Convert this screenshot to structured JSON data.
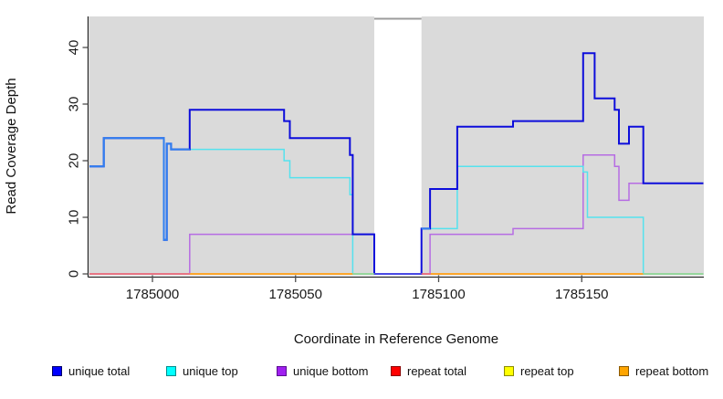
{
  "axes": {
    "xlabel": "Coordinate in Reference Genome",
    "ylabel": "Read Coverage Depth",
    "x_ticks": [
      1785000,
      1785050,
      1785100,
      1785150
    ],
    "y_ticks": [
      0,
      10,
      20,
      30,
      40
    ]
  },
  "legend": {
    "items": [
      {
        "label": "unique total",
        "swatch_color": "#0000FF",
        "swatch_border": "#000066"
      },
      {
        "label": "unique top",
        "swatch_color": "#00FFFF",
        "swatch_border": "#008B8B"
      },
      {
        "label": "unique bottom",
        "swatch_color": "#A020F0",
        "swatch_border": "#5A0E91"
      },
      {
        "label": "repeat total",
        "swatch_color": "#FF0000",
        "swatch_border": "#8B0000"
      },
      {
        "label": "repeat top",
        "swatch_color": "#FFFF00",
        "swatch_border": "#8B8B00"
      },
      {
        "label": "repeat bottom",
        "swatch_color": "#FFA500",
        "swatch_border": "#8B5A00"
      }
    ]
  },
  "chart_data": {
    "type": "line",
    "step_mode": "post",
    "title": "",
    "xlabel": "Coordinate in Reference Genome",
    "ylabel": "Read Coverage Depth",
    "xlim": [
      1784978,
      1785192.5
    ],
    "ylim": [
      0,
      45.5
    ],
    "grid": false,
    "panel_bg": "#DADADA",
    "legend_position": "bottom",
    "end_x": 1785192.5,
    "series": [
      {
        "name": "unique total",
        "line_color": "#0D0DDB",
        "width": 2,
        "steps": [
          [
            1784978,
            19
          ],
          [
            1784983,
            24
          ],
          [
            1785004,
            6
          ],
          [
            1785005,
            23
          ],
          [
            1785006.5,
            22
          ],
          [
            1785013,
            29
          ],
          [
            1785046,
            27
          ],
          [
            1785048,
            24
          ],
          [
            1785069,
            21
          ],
          [
            1785070,
            7
          ],
          [
            1785077.5,
            0
          ],
          [
            1785094,
            8
          ],
          [
            1785097,
            15
          ],
          [
            1785106.5,
            26
          ],
          [
            1785126,
            27
          ],
          [
            1785150.5,
            39
          ],
          [
            1785154.5,
            31
          ],
          [
            1785161.5,
            29
          ],
          [
            1785163,
            23
          ],
          [
            1785166.5,
            26
          ],
          [
            1785171.5,
            16
          ]
        ]
      },
      {
        "name": "unique top",
        "line_color": "#55E2EE",
        "width": 1.5,
        "steps": [
          [
            1784978,
            19
          ],
          [
            1784983,
            24
          ],
          [
            1785004,
            6
          ],
          [
            1785005,
            23
          ],
          [
            1785006.5,
            22
          ],
          [
            1785046,
            20
          ],
          [
            1785048,
            17
          ],
          [
            1785069,
            14
          ],
          [
            1785070,
            0
          ],
          [
            1785094,
            8
          ],
          [
            1785106.5,
            19
          ],
          [
            1785150.5,
            18
          ],
          [
            1785152,
            10
          ],
          [
            1785171.5,
            0
          ]
        ]
      },
      {
        "name": "unique bottom",
        "line_color": "#B66CE3",
        "width": 1.5,
        "steps": [
          [
            1784978,
            0
          ],
          [
            1785013,
            7
          ],
          [
            1785077.5,
            0
          ],
          [
            1785097,
            7
          ],
          [
            1785126,
            8
          ],
          [
            1785150.5,
            21
          ],
          [
            1785161.5,
            19
          ],
          [
            1785163,
            13
          ],
          [
            1785166.5,
            16
          ]
        ]
      },
      {
        "name": "repeat total",
        "line_color": "#ED6F7C",
        "width": 1.5,
        "steps": [
          [
            1784978,
            0
          ]
        ]
      },
      {
        "name": "repeat top",
        "line_color": "#EDED4D",
        "width": 1.5,
        "steps": [
          [
            1784978,
            0
          ]
        ]
      },
      {
        "name": "repeat bottom",
        "line_color": "#FFA51E",
        "width": 1.5,
        "steps": [
          [
            1784978,
            0
          ]
        ]
      }
    ],
    "masked_region": {
      "from": 1785077.5,
      "to": 1785094,
      "fill": "#FFFFFF",
      "top_border_color": "#9C9C9C"
    },
    "blend_overlays": [
      {
        "on": "unique top",
        "from": 1784978,
        "to": 1785013,
        "color": "#2F7FF0",
        "width": 2
      },
      {
        "on": "unique top",
        "from": 1785094,
        "to": 1785097,
        "color": "#2F7FF0",
        "width": 2
      }
    ],
    "baseline_overlays": [
      {
        "from": 1784978,
        "to": 1785013,
        "color": "#ED6F7C"
      },
      {
        "from": 1785013,
        "to": 1785070,
        "color": "#FFA51E"
      },
      {
        "from": 1785070,
        "to": 1785077.5,
        "color": "#92DC9A"
      },
      {
        "from": 1785077.5,
        "to": 1785094,
        "color": "#5E5EE8"
      },
      {
        "from": 1785094,
        "to": 1785097.3,
        "color": "#ED6F7C"
      },
      {
        "from": 1785097.3,
        "to": 1785171.5,
        "color": "#FFA51E"
      },
      {
        "from": 1785171.5,
        "to": 1785192.5,
        "color": "#92DC9A"
      }
    ]
  }
}
